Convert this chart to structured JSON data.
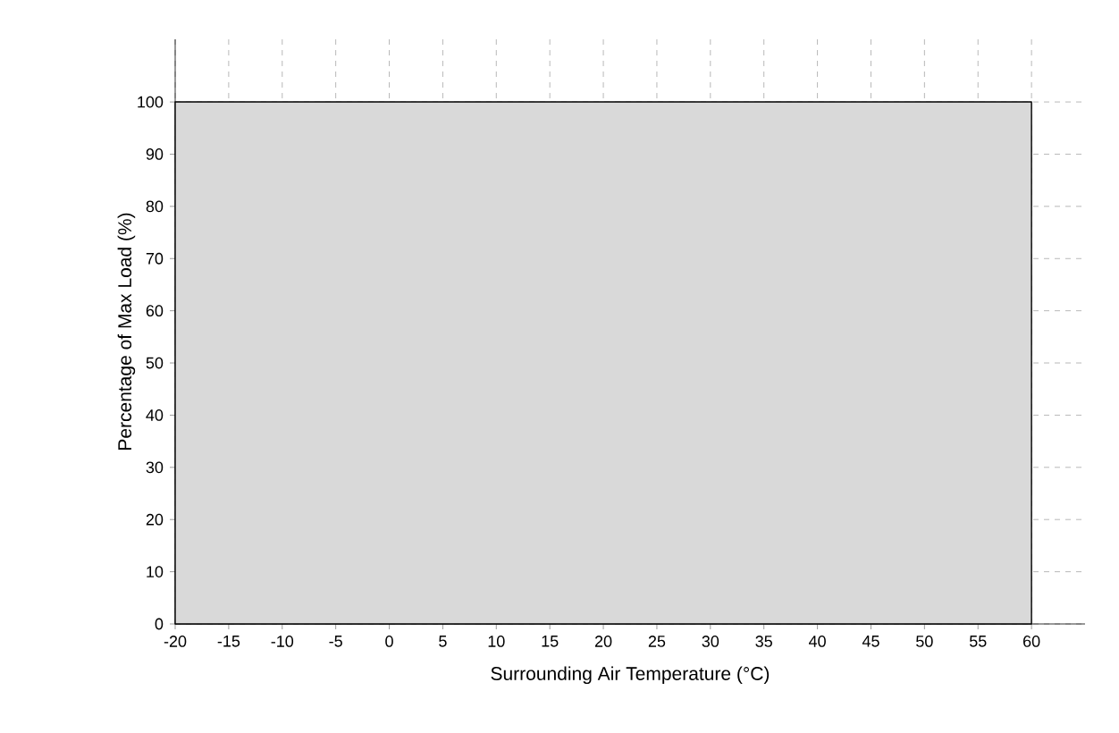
{
  "chart_data": {
    "type": "area",
    "xlabel": "Surrounding Air Temperature (°C)",
    "ylabel": "Percentage of Max Load (%)",
    "x": [
      -20,
      60
    ],
    "series": [
      {
        "color": "#d9d9d9",
        "values": [
          100,
          100
        ]
      }
    ],
    "xlim": [
      -20,
      65
    ],
    "ylim": [
      0,
      112
    ],
    "xticks": [
      -20,
      -15,
      -10,
      -5,
      0,
      5,
      10,
      15,
      20,
      25,
      30,
      35,
      40,
      45,
      50,
      55,
      60
    ],
    "yticks": [
      0,
      10,
      20,
      30,
      40,
      50,
      60,
      70,
      80,
      90,
      100
    ],
    "grid": true,
    "line_style": "solid"
  }
}
